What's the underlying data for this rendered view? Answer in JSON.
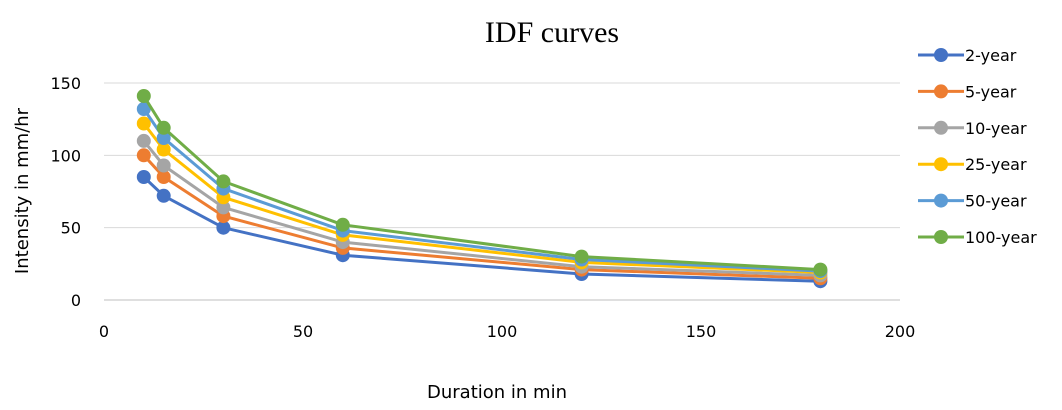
{
  "chart_data": {
    "type": "line",
    "title": "IDF curves",
    "xlabel": "Duration in min",
    "ylabel": "Intensity in mm/hr",
    "xlim": [
      0,
      200
    ],
    "ylim": [
      0,
      150
    ],
    "xticks": [
      0,
      50,
      100,
      150,
      200
    ],
    "yticks": [
      0,
      50,
      100,
      150
    ],
    "grid": "horizontal",
    "legend_position": "right",
    "x": [
      10,
      15,
      30,
      60,
      120,
      180
    ],
    "series": [
      {
        "name": "2-year",
        "color": "#4472C4",
        "values": [
          85,
          72,
          50,
          31,
          18,
          13
        ]
      },
      {
        "name": "5-year",
        "color": "#ED7D31",
        "values": [
          100,
          85,
          58,
          36,
          21,
          15
        ]
      },
      {
        "name": "10-year",
        "color": "#A5A5A5",
        "values": [
          110,
          93,
          64,
          40,
          23,
          17
        ]
      },
      {
        "name": "25-year",
        "color": "#FFC000",
        "values": [
          122,
          104,
          71,
          45,
          26,
          19
        ]
      },
      {
        "name": "50-year",
        "color": "#5B9BD5",
        "values": [
          132,
          112,
          77,
          48,
          28,
          20
        ]
      },
      {
        "name": "100-year",
        "color": "#70AD47",
        "values": [
          141,
          119,
          82,
          52,
          30,
          21
        ]
      }
    ]
  }
}
